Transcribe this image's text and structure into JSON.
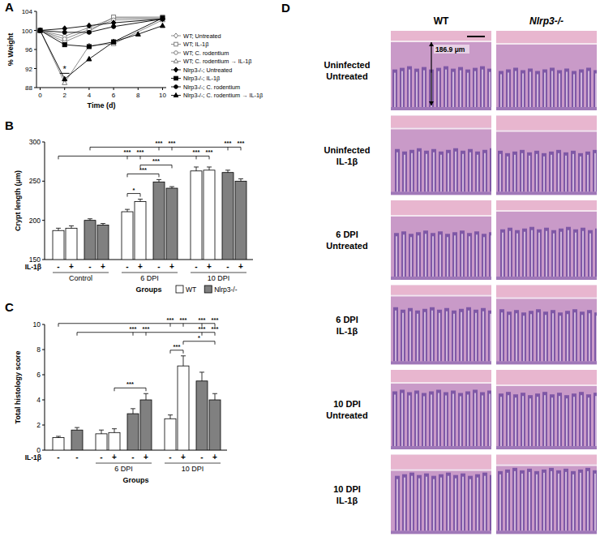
{
  "chart_data": [
    {
      "type": "line",
      "panel_label": "A",
      "x_label": "Time (d)",
      "y_label": "% Weight",
      "xlim": [
        -0.3,
        10.3
      ],
      "ylim": [
        88,
        104
      ],
      "xticks": [
        0,
        2,
        4,
        6,
        8,
        10
      ],
      "yticks": [
        88,
        92,
        96,
        100,
        104
      ],
      "legend": "right",
      "series": [
        {
          "name": "WT; Untreated",
          "color": "#7f7f7f",
          "marker": "diamond-open",
          "x": [
            0,
            2,
            4,
            6,
            10
          ],
          "values": [
            100,
            98.8,
            100.6,
            102.6,
            102.6
          ]
        },
        {
          "name": "WT; IL-1β",
          "color": "#7f7f7f",
          "marker": "square-open",
          "x": [
            0,
            2,
            4,
            6,
            10
          ],
          "values": [
            100,
            97.6,
            99.8,
            102.8,
            102.8
          ]
        },
        {
          "name": "WT; C. rodentium",
          "color": "#7f7f7f",
          "marker": "circle-open",
          "x": [
            0,
            2,
            4,
            6,
            10
          ],
          "values": [
            100,
            98.2,
            100.2,
            102.2,
            102.4
          ]
        },
        {
          "name": "WT; C. rodentium → IL-1β",
          "color": "#7f7f7f",
          "marker": "triangle-open",
          "x": [
            0,
            2,
            4,
            6,
            10
          ],
          "values": [
            100,
            89,
            96.8,
            97.2,
            102.2
          ]
        },
        {
          "name": "Nlrp3-/-; Untreated",
          "color": "#000000",
          "marker": "diamond",
          "x": [
            0,
            2,
            4,
            6,
            10
          ],
          "values": [
            100,
            100.4,
            101,
            101.6,
            102.4
          ]
        },
        {
          "name": "Nlrp3-/-; IL-1β",
          "color": "#000000",
          "marker": "square",
          "x": [
            0,
            2,
            4,
            6,
            10
          ],
          "values": [
            100,
            97,
            96.6,
            97.6,
            102.6
          ]
        },
        {
          "name": "Nlrp3-/-; C. rodentium",
          "color": "#000000",
          "marker": "circle",
          "x": [
            0,
            2,
            4,
            6,
            10
          ],
          "values": [
            100,
            99.6,
            99.6,
            100.8,
            102.4
          ]
        },
        {
          "name": "Nlrp3-/-; C. rodentium → IL-1β",
          "color": "#000000",
          "marker": "triangle",
          "x": [
            0,
            2,
            4,
            6,
            8,
            10
          ],
          "values": [
            100,
            89.8,
            94,
            97.6,
            99.2,
            101
          ]
        }
      ],
      "annotations": [
        {
          "text": "*",
          "x": 2,
          "y": 91
        }
      ]
    },
    {
      "type": "bar",
      "panel_label": "B",
      "x_label": "Groups",
      "y_label": "Crypt length (μm)",
      "row_label": "IL-1β",
      "ylim": [
        150,
        300
      ],
      "yticks": [
        150,
        200,
        250,
        300
      ],
      "legend": "bottom-right",
      "categories": [
        "-",
        "+",
        "-",
        "+",
        "-",
        "+"
      ],
      "category_groups": [
        0,
        0,
        1,
        1,
        2,
        2
      ],
      "group_labels": [
        "Control",
        "6 DPI",
        "10 DPI"
      ],
      "series": [
        {
          "name": "WT",
          "color": "#ffffff",
          "values": [
            187,
            190,
            211,
            224,
            263,
            264
          ],
          "errors": [
            3,
            3,
            3,
            3,
            5,
            4
          ]
        },
        {
          "name": "Nlrp3-/-",
          "color": "#808080",
          "values": [
            200,
            194,
            249,
            241,
            261,
            250
          ],
          "errors": [
            2,
            2,
            3,
            2,
            3,
            3
          ]
        }
      ],
      "brackets": [
        {
          "from": [
            0,
            0
          ],
          "to": [
            [
              0,
              2
            ],
            [
              0,
              3
            ],
            [
              0,
              4
            ],
            [
              0,
              5
            ]
          ],
          "labels": [
            "***",
            "***",
            "***",
            "***"
          ]
        },
        {
          "from": [
            1,
            0
          ],
          "to": [
            [
              1,
              2
            ],
            [
              1,
              3
            ],
            [
              1,
              4
            ],
            [
              1,
              5
            ]
          ],
          "labels": [
            "***",
            "***",
            "***",
            "***"
          ]
        },
        {
          "from": [
            0,
            2
          ],
          "to": [
            [
              0,
              3
            ]
          ],
          "labels": [
            "*"
          ]
        },
        {
          "from": [
            0,
            2
          ],
          "to": [
            [
              1,
              2
            ]
          ],
          "labels": [
            "***"
          ]
        },
        {
          "from": [
            0,
            3
          ],
          "to": [
            [
              1,
              3
            ]
          ],
          "labels": [
            "***"
          ]
        }
      ]
    },
    {
      "type": "bar",
      "panel_label": "C",
      "x_label": "Groups",
      "y_label": "Total histology score",
      "row_label": "IL-1β",
      "ylim": [
        0,
        10
      ],
      "yticks": [
        0,
        2,
        4,
        6,
        8,
        10
      ],
      "categories": [
        "-",
        "-",
        "+",
        "-",
        "+"
      ],
      "category_groups": [
        0,
        1,
        1,
        2,
        2
      ],
      "group_labels": [
        null,
        "6 DPI",
        "10 DPI"
      ],
      "series": [
        {
          "name": "WT",
          "color": "#ffffff",
          "values": [
            1,
            1.3,
            1.4,
            2.5,
            6.7
          ],
          "errors": [
            0.1,
            0.3,
            0.3,
            0.3,
            0.8
          ]
        },
        {
          "name": "Nlrp3-/-",
          "color": "#808080",
          "values": [
            1.6,
            2.9,
            4,
            5.5,
            4
          ],
          "errors": [
            0.2,
            0.4,
            0.5,
            0.7,
            0.5
          ]
        }
      ],
      "brackets": [
        {
          "from": [
            0,
            0
          ],
          "to": [
            [
              0,
              3
            ],
            [
              0,
              4
            ],
            [
              1,
              3
            ],
            [
              1,
              4
            ]
          ],
          "labels": [
            "***",
            "***",
            "***",
            "***"
          ]
        },
        {
          "from": [
            1,
            0
          ],
          "to": [
            [
              1,
              1
            ],
            [
              1,
              2
            ],
            [
              1,
              3
            ],
            [
              1,
              4
            ]
          ],
          "labels": [
            "***",
            "***",
            "***",
            "***"
          ]
        },
        {
          "from": [
            0,
            2
          ],
          "to": [
            [
              1,
              2
            ]
          ],
          "labels": [
            "***"
          ]
        },
        {
          "from": [
            0,
            3
          ],
          "to": [
            [
              0,
              4
            ]
          ],
          "labels": [
            "***"
          ]
        },
        {
          "from": [
            0,
            4
          ],
          "to": [
            [
              1,
              4
            ]
          ],
          "labels": [
            "*"
          ]
        }
      ]
    }
  ],
  "panel_d": {
    "panel_label": "D",
    "columns": [
      "WT",
      "Nlrp3-/-"
    ],
    "rows": [
      [
        "Uninfected",
        "Untreated"
      ],
      [
        "Uninfected",
        "IL-1β"
      ],
      [
        "6 DPI",
        "Untreated"
      ],
      [
        "6 DPI",
        "IL-1β"
      ],
      [
        "10 DPI",
        "Untreated"
      ],
      [
        "10 DPI",
        "IL-1β"
      ]
    ],
    "scale_annotation": "186.9 μm"
  }
}
